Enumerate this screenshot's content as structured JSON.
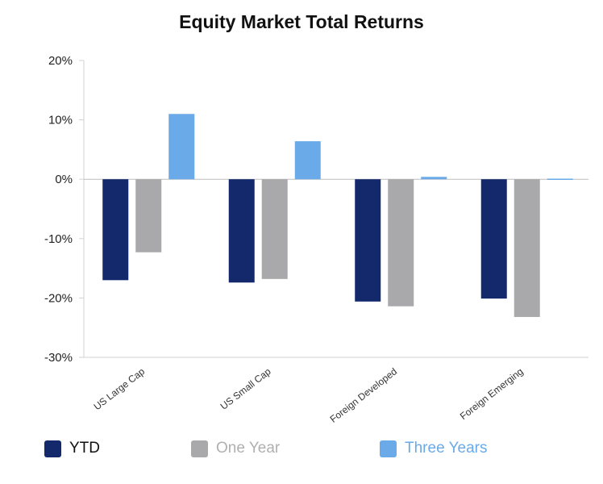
{
  "chart_data": {
    "type": "bar",
    "title": "Equity Market Total Returns",
    "categories": [
      "US Large Cap",
      "US Small Cap",
      "Foreign Developed",
      "Foreign Emerging"
    ],
    "series": [
      {
        "name": "YTD",
        "color": "#13296b",
        "values": [
          -17.0,
          -17.4,
          -20.6,
          -20.1
        ]
      },
      {
        "name": "One Year",
        "color": "#a9a9ab",
        "values": [
          -12.3,
          -16.8,
          -21.4,
          -23.2
        ]
      },
      {
        "name": "Three Years",
        "color": "#6aaae8",
        "values": [
          11.0,
          6.4,
          0.4,
          0.1
        ]
      }
    ],
    "ylim": [
      -30,
      20
    ],
    "yticks": [
      20,
      10,
      0,
      -10,
      -20,
      -30
    ],
    "ytick_labels": [
      "20%",
      "10%",
      "0%",
      "-10%",
      "-20%",
      "-30%"
    ],
    "xlabel": "",
    "ylabel": "",
    "legend_position": "bottom",
    "grid": false
  }
}
